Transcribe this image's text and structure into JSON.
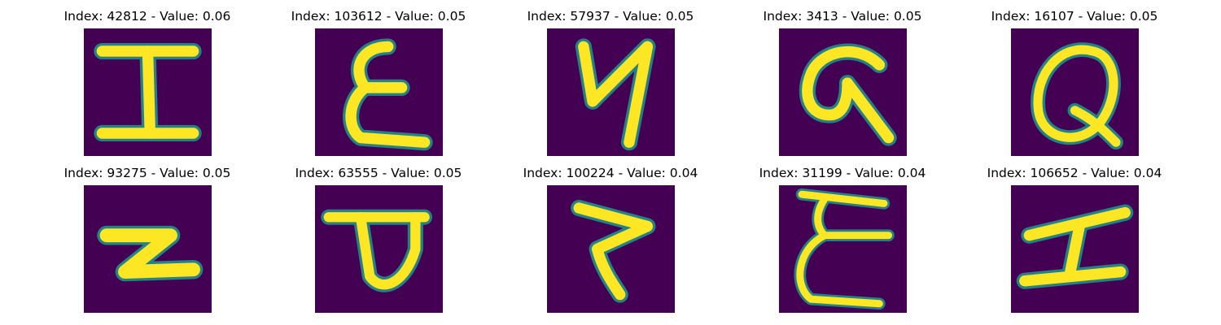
{
  "figure": {
    "colormap": "viridis",
    "background_color": "#440154",
    "stroke_color": "#fde725",
    "panels": [
      {
        "title": "Index: 42812 - Value: 0.06",
        "glyph": "I"
      },
      {
        "title": "Index: 103612 - Value: 0.05",
        "glyph": "E"
      },
      {
        "title": "Index: 57937 - Value: 0.05",
        "glyph": "N"
      },
      {
        "title": "Index: 3413 - Value: 0.05",
        "glyph": "G"
      },
      {
        "title": "Index: 16107 - Value: 0.05",
        "glyph": "Q"
      },
      {
        "title": "Index: 93275 - Value: 0.05",
        "glyph": "Z"
      },
      {
        "title": "Index: 63555 - Value: 0.05",
        "glyph": "D"
      },
      {
        "title": "Index: 100224 - Value: 0.04",
        "glyph": "Z"
      },
      {
        "title": "Index: 31199 - Value: 0.04",
        "glyph": "E"
      },
      {
        "title": "Index: 106652 - Value: 0.04",
        "glyph": "I"
      }
    ]
  }
}
